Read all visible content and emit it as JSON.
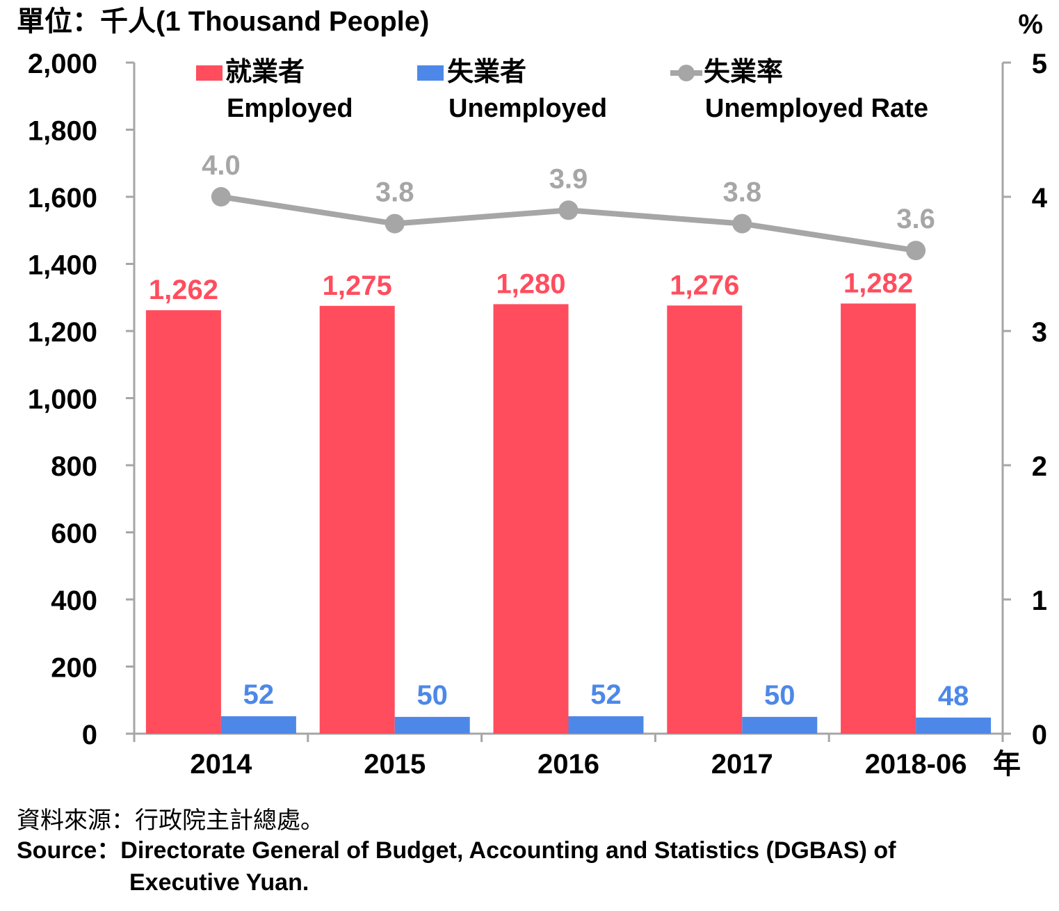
{
  "unit_label": "單位：千人(1 Thousand People)",
  "right_unit": "%",
  "x_unit": "年",
  "legend": {
    "employed": {
      "zh": "就業者",
      "en": "Employed"
    },
    "unemployed": {
      "zh": "失業者",
      "en": "Unemployed"
    },
    "rate": {
      "zh": "失業率",
      "en": "Unemployed Rate"
    }
  },
  "source": {
    "zh": "資料來源：行政院主計總處。",
    "en_line1": "Source：Directorate General of Budget, Accounting and Statistics (DGBAS) of",
    "en_line2": "Executive Yuan."
  },
  "chart_data": {
    "type": "bar",
    "categories": [
      "2014",
      "2015",
      "2016",
      "2017",
      "2018-06"
    ],
    "series": [
      {
        "name": "就業者 Employed",
        "type": "bar",
        "axis": "left",
        "color": "#FF4D5E",
        "values": [
          1262,
          1275,
          1280,
          1276,
          1282
        ],
        "labels": [
          "1,262",
          "1,275",
          "1,280",
          "1,276",
          "1,282"
        ]
      },
      {
        "name": "失業者 Unemployed",
        "type": "bar",
        "axis": "left",
        "color": "#4D88E8",
        "values": [
          52,
          50,
          52,
          50,
          48
        ],
        "labels": [
          "52",
          "50",
          "52",
          "50",
          "48"
        ]
      },
      {
        "name": "失業率 Unemployed Rate",
        "type": "line",
        "axis": "right",
        "color": "#A6A6A6",
        "values": [
          4.0,
          3.8,
          3.9,
          3.8,
          3.6
        ],
        "labels": [
          "4.0",
          "3.8",
          "3.9",
          "3.8",
          "3.6"
        ]
      }
    ],
    "left_axis": {
      "ylim": [
        0,
        2000
      ],
      "ticks": [
        "0",
        "200",
        "400",
        "600",
        "800",
        "1,000",
        "1,200",
        "1,400",
        "1,600",
        "1,800",
        "2,000"
      ]
    },
    "right_axis": {
      "ylim": [
        0,
        5
      ],
      "ticks": [
        "0",
        "1",
        "2",
        "3",
        "4",
        "5"
      ]
    },
    "grid": false,
    "legend_position": "top"
  }
}
